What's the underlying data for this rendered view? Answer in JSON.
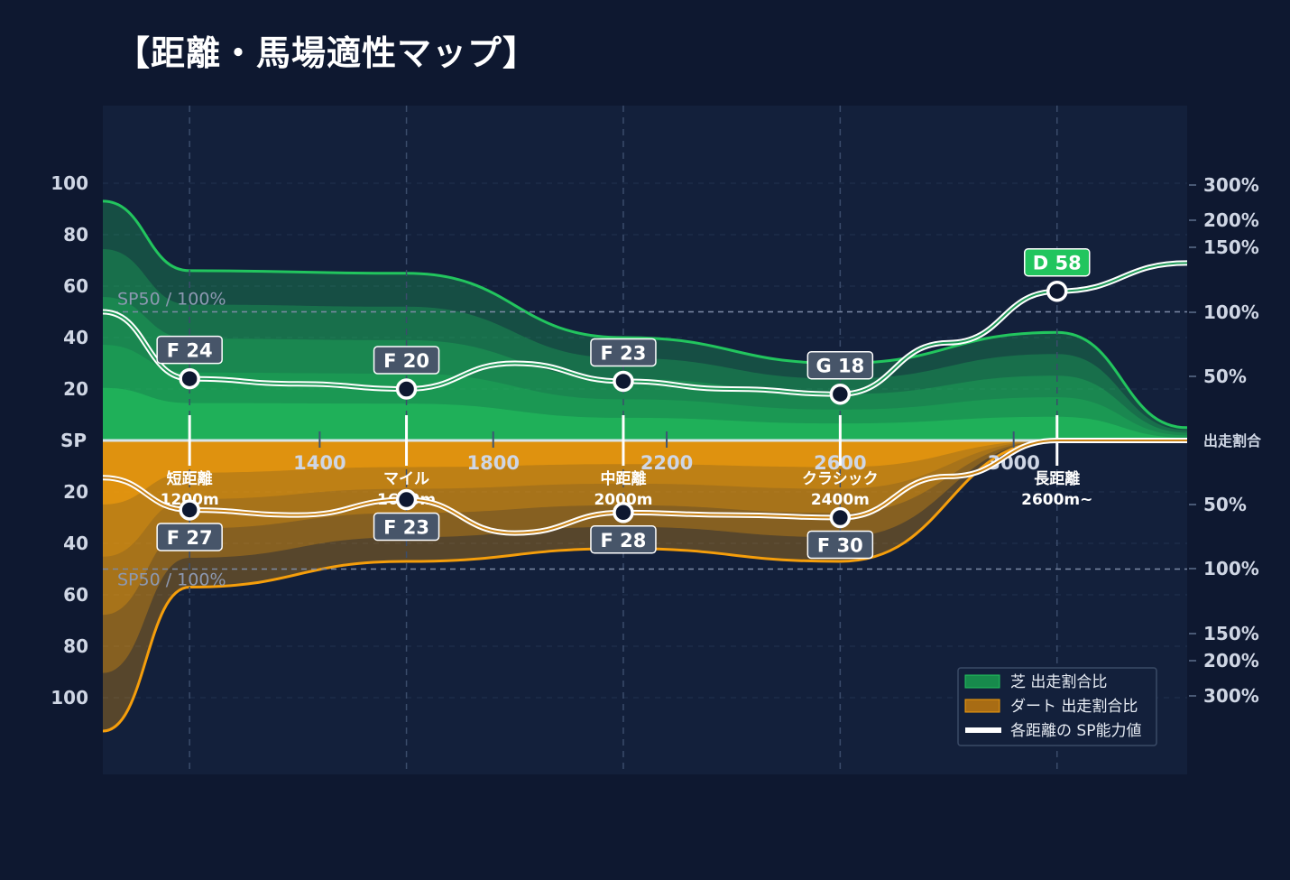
{
  "title": "【距離・馬場適性マップ】",
  "colors": {
    "background": "#0e1830",
    "plot": "#13203b",
    "turf": "#22c55e",
    "dirt": "#f59e0b",
    "sp_line": "#ffffff",
    "badge": "#475569",
    "badge_best": "#22c55e"
  },
  "chart_data": {
    "type": "area",
    "x_range": [
      900,
      3400
    ],
    "x_ticks": [
      1400,
      1800,
      2200,
      2600,
      3000
    ],
    "y_left_ticks_top": [
      100,
      80,
      60,
      40,
      20
    ],
    "y_left_ticks_bottom": [
      20,
      40,
      60,
      80,
      100
    ],
    "y_center_label": "SP",
    "y_right_ticks_top": [
      "300%",
      "200%",
      "150%",
      "100%",
      "50%"
    ],
    "y_right_center_label": "出走割合",
    "y_right_ticks_bottom": [
      "50%",
      "100%",
      "150%",
      "200%",
      "300%"
    ],
    "reference_label_top": "SP50 / 100%",
    "reference_label_bottom": "SP50 / 100%",
    "distance_categories": [
      {
        "line1": "短距離",
        "line2": "1200m",
        "x": 1100
      },
      {
        "line1": "マイル",
        "line2": "1600m",
        "x": 1600
      },
      {
        "line1": "中距離",
        "line2": "2000m",
        "x": 2100
      },
      {
        "line1": "クラシック",
        "line2": "2400m",
        "x": 2600
      },
      {
        "line1": "長距離",
        "line2": "2600m~",
        "x": 3100
      }
    ],
    "turf": {
      "sp_points": [
        {
          "x": 1100,
          "sp": 24,
          "grade": "F",
          "label": "F 24"
        },
        {
          "x": 1600,
          "sp": 20,
          "grade": "F",
          "label": "F 20"
        },
        {
          "x": 2100,
          "sp": 23,
          "grade": "F",
          "label": "F 23"
        },
        {
          "x": 2600,
          "sp": 18,
          "grade": "G",
          "label": "G 18"
        },
        {
          "x": 3100,
          "sp": 58,
          "grade": "D",
          "label": "D 58"
        }
      ],
      "ratio_outline": [
        [
          900,
          93
        ],
        [
          1100,
          66
        ],
        [
          1600,
          65
        ],
        [
          2100,
          40
        ],
        [
          2600,
          30
        ],
        [
          3100,
          42
        ],
        [
          3400,
          5
        ]
      ]
    },
    "dirt": {
      "sp_points": [
        {
          "x": 1100,
          "sp": 27,
          "grade": "F",
          "label": "F 27"
        },
        {
          "x": 1600,
          "sp": 23,
          "grade": "F",
          "label": "F 23"
        },
        {
          "x": 2100,
          "sp": 28,
          "grade": "F",
          "label": "F 28"
        },
        {
          "x": 2600,
          "sp": 30,
          "grade": "F",
          "label": "F 30"
        },
        {
          "x": 3100,
          "sp": 0,
          "grade": "",
          "label": ""
        }
      ],
      "ratio_outline": [
        [
          900,
          113
        ],
        [
          1100,
          57
        ],
        [
          1600,
          47
        ],
        [
          2100,
          42
        ],
        [
          2600,
          47
        ],
        [
          3100,
          0
        ],
        [
          3400,
          0
        ]
      ]
    },
    "legend": [
      {
        "label": "芝 出走割合比",
        "type": "turf"
      },
      {
        "label": "ダート 出走割合比",
        "type": "dirt"
      },
      {
        "label": "各距離の SP能力値",
        "type": "line"
      }
    ],
    "legend_position": "bottom-right",
    "grid": true
  }
}
